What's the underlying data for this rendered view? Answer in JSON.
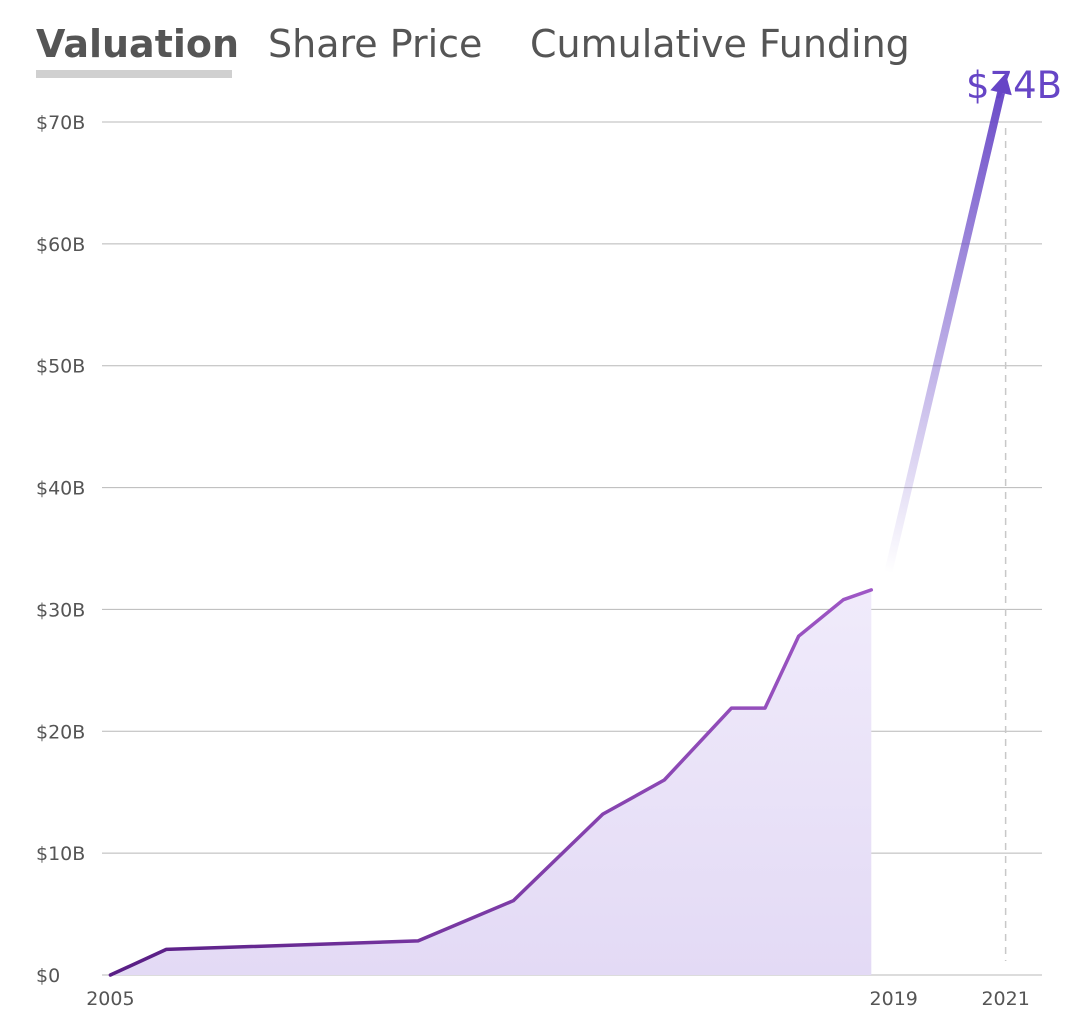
{
  "tabs": [
    {
      "label": "Valuation",
      "active": true
    },
    {
      "label": "Share Price",
      "active": false
    },
    {
      "label": "Cumulative Funding",
      "active": false
    }
  ],
  "colors": {
    "line_start": "#5a1f86",
    "line_end": "#a25ac9",
    "area_fill": "#e9e1f7",
    "projection": "#6645c6",
    "grid": "#b8b8b8",
    "text": "#555555"
  },
  "chart_data": {
    "type": "line",
    "ylim": [
      0,
      70
    ],
    "yticks": [
      {
        "value": 0,
        "label": "$0"
      },
      {
        "value": 10,
        "label": "$10B"
      },
      {
        "value": 20,
        "label": "$20B"
      },
      {
        "value": 30,
        "label": "$30B"
      },
      {
        "value": 40,
        "label": "$40B"
      },
      {
        "value": 50,
        "label": "$50B"
      },
      {
        "value": 60,
        "label": "$60B"
      },
      {
        "value": 70,
        "label": "$70B"
      }
    ],
    "xlim": [
      2004.85,
      2021.65
    ],
    "xticks": [
      {
        "value": 2005,
        "label": "2005"
      },
      {
        "value": 2019,
        "label": "2019"
      },
      {
        "value": 2021,
        "label": "2021"
      }
    ],
    "series": [
      {
        "points": [
          {
            "x": 2005.0,
            "y": 0
          },
          {
            "x": 2006.0,
            "y": 2.1
          },
          {
            "x": 2010.5,
            "y": 2.8
          },
          {
            "x": 2012.2,
            "y": 6.1
          },
          {
            "x": 2013.8,
            "y": 13.2
          },
          {
            "x": 2014.9,
            "y": 16.0
          },
          {
            "x": 2016.1,
            "y": 21.9
          },
          {
            "x": 2016.7,
            "y": 21.9
          },
          {
            "x": 2017.3,
            "y": 27.8
          },
          {
            "x": 2018.1,
            "y": 30.8
          },
          {
            "x": 2018.6,
            "y": 31.6
          }
        ]
      }
    ],
    "projection": {
      "from": {
        "x": 2018.9,
        "y": 33
      },
      "to": {
        "x": 2021.0,
        "y": 74
      },
      "label": "$74B"
    }
  }
}
